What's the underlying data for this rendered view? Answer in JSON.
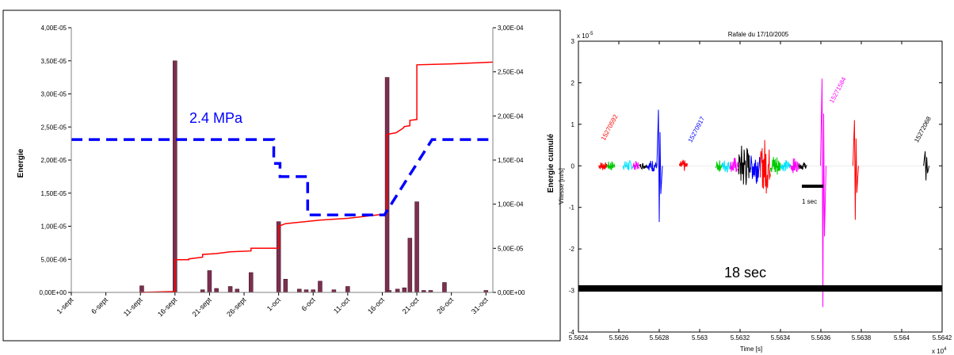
{
  "colors": {
    "bar_fill": "#7b2f4f",
    "cumul_line": "#ff0000",
    "pressure_line": "#0000ff",
    "annotation_blue": "#0000ff",
    "seismo_red": "#ff0000",
    "seismo_green": "#00cc00",
    "seismo_cyan": "#00e5ff",
    "seismo_magenta": "#ff00ff",
    "seismo_black": "#000000",
    "seismo_blue": "#0000ff"
  },
  "chart_data": [
    {
      "type": "bar",
      "ylabel": "Energie",
      "y2label": "Energie cumulé",
      "ylim": [
        0,
        4e-05
      ],
      "y2lim": [
        0,
        0.0003
      ],
      "y_ticks": [
        "0,00E+00",
        "5,00E-06",
        "1,00E-05",
        "1,50E-05",
        "2,00E-05",
        "2,50E-05",
        "3,00E-05",
        "3,50E-05",
        "4,00E-05"
      ],
      "y2_ticks": [
        "0,00E+00",
        "5,00E-05",
        "1,00E-04",
        "1,50E-04",
        "2,00E-04",
        "2,50E-04",
        "3,00E-04"
      ],
      "x_ticks": [
        "1-sept",
        "6-sept",
        "11-sept",
        "16-sept",
        "21-sept",
        "26-sept",
        "1-oct",
        "6-oct",
        "11-oct",
        "16-oct",
        "21-oct",
        "26-oct",
        "31-oct"
      ],
      "xlim": [
        0,
        61
      ],
      "annotation": "2.4 MPa",
      "bars": [
        {
          "day": 10.2,
          "value": 1e-06
        },
        {
          "day": 15.0,
          "value": 3.5e-05
        },
        {
          "day": 19.0,
          "value": 4e-07
        },
        {
          "day": 20.0,
          "value": 3.3e-06
        },
        {
          "day": 21.0,
          "value": 6e-07
        },
        {
          "day": 23.0,
          "value": 9e-07
        },
        {
          "day": 24.0,
          "value": 5e-07
        },
        {
          "day": 26.0,
          "value": 3e-06
        },
        {
          "day": 30.0,
          "value": 1.07e-05
        },
        {
          "day": 31.0,
          "value": 2e-06
        },
        {
          "day": 33.0,
          "value": 5e-07
        },
        {
          "day": 34.0,
          "value": 4e-07
        },
        {
          "day": 35.0,
          "value": 4e-07
        },
        {
          "day": 36.0,
          "value": 1.7e-06
        },
        {
          "day": 38.0,
          "value": 4e-07
        },
        {
          "day": 40.0,
          "value": 9e-07
        },
        {
          "day": 45.7,
          "value": 3.25e-05
        },
        {
          "day": 46.0,
          "value": 3e-07
        },
        {
          "day": 47.2,
          "value": 5e-07
        },
        {
          "day": 48.2,
          "value": 7e-07
        },
        {
          "day": 49.0,
          "value": 8.2e-06
        },
        {
          "day": 50.0,
          "value": 1.37e-05
        },
        {
          "day": 51.0,
          "value": 3e-07
        },
        {
          "day": 52.0,
          "value": 3e-07
        },
        {
          "day": 54.0,
          "value": 1.5e-06
        },
        {
          "day": 60.0,
          "value": 3e-07
        }
      ],
      "cumulative": {
        "x": [
          10,
          15,
          15,
          17,
          17,
          18,
          19,
          19,
          21,
          23,
          26,
          26,
          30,
          30,
          31,
          36,
          40,
          45.6,
          45.6,
          47,
          48,
          48.2,
          49,
          49,
          50,
          50,
          55,
          61
        ],
        "y": [
          0,
          1e-06,
          3.7e-05,
          3.7e-05,
          3.8e-05,
          3.9e-05,
          4e-05,
          4.3e-05,
          4.4e-05,
          4.6e-05,
          4.7e-05,
          5e-05,
          5e-05,
          7.5e-05,
          7.8e-05,
          8.2e-05,
          8.4e-05,
          8.9e-05,
          0.000179,
          0.000181,
          0.000186,
          0.000188,
          0.000189,
          0.000195,
          0.000196,
          0.000258,
          0.000259,
          0.000261
        ]
      },
      "pressure": {
        "x": [
          0,
          29.3,
          29.3,
          30.2,
          30.2,
          34.2,
          34.2,
          45.3,
          52.2,
          61
        ],
        "y": [
          2.31e-05,
          2.31e-05,
          1.95e-05,
          1.95e-05,
          1.75e-05,
          1.75e-05,
          1.17e-05,
          1.17e-05,
          2.31e-05,
          2.31e-05
        ]
      }
    },
    {
      "type": "line",
      "title": "Rafale du 17/10/2005",
      "xlabel": "Time [s]",
      "ylabel": "Vitesse [m/s]",
      "xlim": [
        5.5624,
        5.5642
      ],
      "ylim": [
        -4,
        3
      ],
      "x_ticks": [
        "5.5624",
        "5.5626",
        "5.5628",
        "5.563",
        "5.5632",
        "5.5634",
        "5.5636",
        "5.5638",
        "5.564",
        "5.5642"
      ],
      "y_ticks": [
        "-4",
        "-3",
        "-2",
        "-1",
        "0",
        "1",
        "2",
        "3"
      ],
      "x_exponent": "x 10",
      "x_exponent_power": "4",
      "y_exponent": "x 10",
      "y_exponent_power": "-5",
      "event_labels": [
        {
          "text": "15270592",
          "x": 5.56253,
          "y": 0.6,
          "color": "#ff0000"
        },
        {
          "text": "15270917",
          "x": 5.56296,
          "y": 0.55,
          "color": "#0000ff"
        },
        {
          "text": "15271584",
          "x": 5.56366,
          "y": 1.5,
          "color": "#ff00ff"
        },
        {
          "text": "15272068",
          "x": 5.56408,
          "y": 0.55,
          "color": "#000000"
        }
      ],
      "annotation_1sec": "1 sec",
      "annotation_18sec": "18 sec",
      "bursts": [
        {
          "x0": 5.5625,
          "x1": 5.56254,
          "amp": 0.12,
          "color": "#ff0000"
        },
        {
          "x0": 5.56254,
          "x1": 5.56258,
          "amp": 0.13,
          "color": "#00cc00"
        },
        {
          "x0": 5.56262,
          "x1": 5.56267,
          "amp": 0.15,
          "color": "#00e5ff"
        },
        {
          "x0": 5.56267,
          "x1": 5.5627,
          "amp": 0.12,
          "color": "#ff00ff"
        },
        {
          "x0": 5.5627,
          "x1": 5.56274,
          "amp": 0.08,
          "color": "#000000"
        },
        {
          "x0": 5.56274,
          "x1": 5.56279,
          "amp": 0.15,
          "color": "#0000ff"
        },
        {
          "x0": 5.5629,
          "x1": 5.56294,
          "amp": 0.15,
          "color": "#ff0000"
        },
        {
          "x0": 5.56308,
          "x1": 5.56311,
          "amp": 0.15,
          "color": "#00cc00"
        },
        {
          "x0": 5.56311,
          "x1": 5.56315,
          "amp": 0.18,
          "color": "#00e5ff"
        },
        {
          "x0": 5.56315,
          "x1": 5.56319,
          "amp": 0.22,
          "color": "#ff00ff"
        },
        {
          "x0": 5.56319,
          "x1": 5.56325,
          "amp": 0.6,
          "color": "#000000"
        },
        {
          "x0": 5.56325,
          "x1": 5.5633,
          "amp": 0.45,
          "color": "#0000ff"
        },
        {
          "x0": 5.5633,
          "x1": 5.56335,
          "amp": 0.7,
          "color": "#ff0000"
        },
        {
          "x0": 5.56335,
          "x1": 5.5634,
          "amp": 0.3,
          "color": "#00cc00"
        },
        {
          "x0": 5.5634,
          "x1": 5.56345,
          "amp": 0.15,
          "color": "#00e5ff"
        },
        {
          "x0": 5.56345,
          "x1": 5.56349,
          "amp": 0.2,
          "color": "#ff00ff"
        },
        {
          "x0": 5.56349,
          "x1": 5.56353,
          "amp": 0.1,
          "color": "#000000"
        }
      ],
      "spikes": [
        {
          "x": 5.5628,
          "top": 1.35,
          "bottom": -1.35,
          "color": "#0000ff"
        },
        {
          "x": 5.56361,
          "top": 2.1,
          "bottom": -3.4,
          "color": "#ff00ff"
        },
        {
          "x": 5.56377,
          "top": 1.1,
          "bottom": -1.3,
          "color": "#ff0000"
        },
        {
          "x": 5.56412,
          "top": 0.35,
          "bottom": -0.35,
          "color": "#000000"
        }
      ]
    }
  ]
}
